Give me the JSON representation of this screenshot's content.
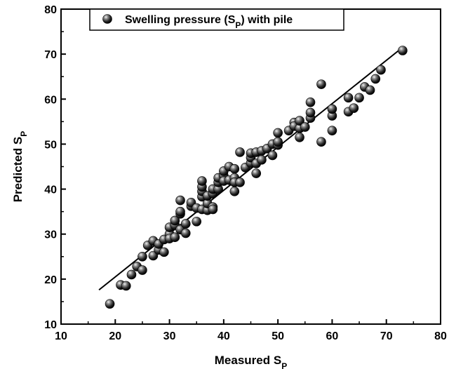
{
  "chart_data": {
    "type": "scatter",
    "xlabel": "Measured S",
    "xlabel_sub": "P",
    "ylabel": "Predicted S",
    "ylabel_sub": "P",
    "xlim": [
      10,
      80
    ],
    "ylim": [
      10,
      80
    ],
    "xticks": [
      10,
      20,
      30,
      40,
      50,
      60,
      70,
      80
    ],
    "yticks": [
      10,
      20,
      30,
      40,
      50,
      60,
      70,
      80
    ],
    "grid": false,
    "legend_position": "top-left",
    "series": [
      {
        "name": "Swelling pressure (S",
        "name_sub": "P",
        "name_tail": ") with pile",
        "marker": "sphere",
        "color": "#1a1a1a",
        "points": [
          [
            19,
            14.5
          ],
          [
            21,
            18.7
          ],
          [
            22,
            18.5
          ],
          [
            23,
            21
          ],
          [
            24,
            22.8
          ],
          [
            25,
            22
          ],
          [
            25,
            25
          ],
          [
            26,
            27.5
          ],
          [
            27,
            28.5
          ],
          [
            27,
            25.2
          ],
          [
            28,
            26.5
          ],
          [
            28,
            27.8
          ],
          [
            29,
            28.8
          ],
          [
            29,
            26
          ],
          [
            30,
            30
          ],
          [
            30,
            31.5
          ],
          [
            30,
            29
          ],
          [
            31,
            29.3
          ],
          [
            31,
            32
          ],
          [
            31,
            33
          ],
          [
            32,
            31
          ],
          [
            32,
            34.5
          ],
          [
            32,
            35
          ],
          [
            32,
            37.5
          ],
          [
            33,
            32.3
          ],
          [
            33,
            30.2
          ],
          [
            34,
            36.2
          ],
          [
            34,
            37
          ],
          [
            35,
            35.8
          ],
          [
            35,
            32.8
          ],
          [
            36,
            38.3
          ],
          [
            36,
            39.5
          ],
          [
            36,
            40.5
          ],
          [
            36,
            41.8
          ],
          [
            36,
            35.5
          ],
          [
            37,
            35.3
          ],
          [
            37,
            36.8
          ],
          [
            37,
            38.5
          ],
          [
            38,
            36
          ],
          [
            38,
            39
          ],
          [
            38,
            40
          ],
          [
            38,
            35.5
          ],
          [
            39,
            40
          ],
          [
            39,
            41.5
          ],
          [
            39,
            42.5
          ],
          [
            40,
            43
          ],
          [
            40,
            44
          ],
          [
            40,
            41.8
          ],
          [
            41,
            42
          ],
          [
            41,
            45
          ],
          [
            42,
            44.5
          ],
          [
            42,
            42.5
          ],
          [
            42,
            39.5
          ],
          [
            42,
            41.5
          ],
          [
            43,
            48.2
          ],
          [
            43,
            41.5
          ],
          [
            44,
            44.8
          ],
          [
            45,
            45.8
          ],
          [
            45,
            47
          ],
          [
            45,
            48
          ],
          [
            46,
            48.2
          ],
          [
            46,
            45.7
          ],
          [
            46,
            43.5
          ],
          [
            47,
            46.5
          ],
          [
            47,
            48.5
          ],
          [
            48,
            49
          ],
          [
            49,
            50
          ],
          [
            49,
            47.5
          ],
          [
            50,
            49.8
          ],
          [
            50,
            50.5
          ],
          [
            50,
            52.5
          ],
          [
            52,
            53
          ],
          [
            53,
            54.8
          ],
          [
            53,
            54
          ],
          [
            54,
            53.5
          ],
          [
            54,
            55.2
          ],
          [
            54,
            51.5
          ],
          [
            55,
            53.8
          ],
          [
            56,
            55.8
          ],
          [
            56,
            57
          ],
          [
            56,
            59.3
          ],
          [
            58,
            63.3
          ],
          [
            58,
            50.5
          ],
          [
            60,
            56.3
          ],
          [
            60,
            57.8
          ],
          [
            60,
            53
          ],
          [
            63,
            57.2
          ],
          [
            63,
            60.3
          ],
          [
            64,
            58
          ],
          [
            65,
            60.3
          ],
          [
            66,
            62.7
          ],
          [
            67,
            62
          ],
          [
            68,
            64.5
          ],
          [
            69,
            66.5
          ],
          [
            73,
            70.8
          ]
        ]
      }
    ],
    "fit_line": {
      "x": [
        17,
        73
      ],
      "y": [
        17.6,
        71.5
      ]
    }
  }
}
